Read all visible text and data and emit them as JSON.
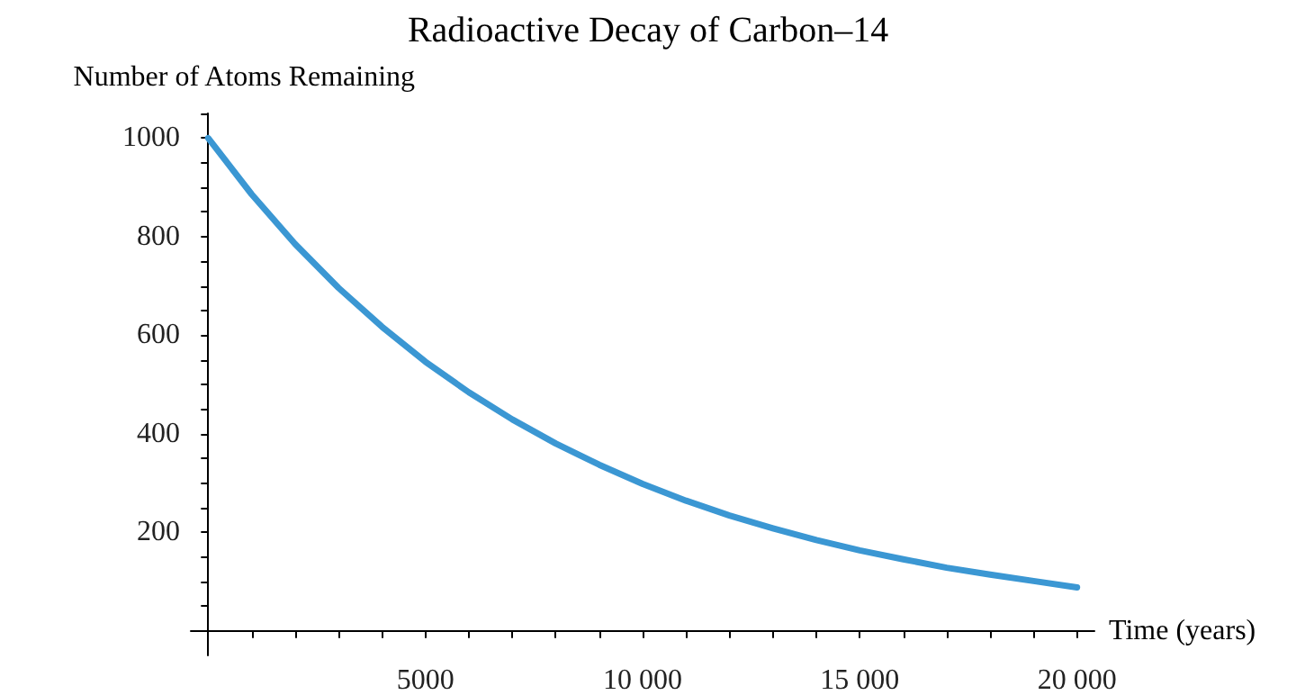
{
  "chart_data": {
    "type": "line",
    "title": "Radioactive Decay of Carbon–14",
    "xlabel": "Time (years)",
    "ylabel": "Number of Atoms Remaining",
    "x": [
      0,
      1000,
      2000,
      3000,
      4000,
      5000,
      6000,
      7000,
      8000,
      9000,
      10000,
      11000,
      12000,
      13000,
      14000,
      15000,
      16000,
      17000,
      18000,
      19000,
      20000
    ],
    "series": [
      {
        "color": "#3b97d3",
        "values": [
          1000,
          886,
          785,
          696,
          617,
          546,
          484,
          429,
          380,
          337,
          298,
          264,
          234,
          208,
          184,
          163,
          145,
          128,
          114,
          101,
          88
        ]
      }
    ],
    "xlim": [
      -400,
      20400
    ],
    "ylim": [
      -50,
      1050
    ],
    "xticks": [
      {
        "value": 0,
        "label": null
      },
      {
        "value": 1000,
        "label": null
      },
      {
        "value": 2000,
        "label": null
      },
      {
        "value": 3000,
        "label": null
      },
      {
        "value": 4000,
        "label": null
      },
      {
        "value": 5000,
        "label": "5000"
      },
      {
        "value": 6000,
        "label": null
      },
      {
        "value": 7000,
        "label": null
      },
      {
        "value": 8000,
        "label": null
      },
      {
        "value": 9000,
        "label": null
      },
      {
        "value": 10000,
        "label": "10 000"
      },
      {
        "value": 11000,
        "label": null
      },
      {
        "value": 12000,
        "label": null
      },
      {
        "value": 13000,
        "label": null
      },
      {
        "value": 14000,
        "label": null
      },
      {
        "value": 15000,
        "label": "15 000"
      },
      {
        "value": 16000,
        "label": null
      },
      {
        "value": 17000,
        "label": null
      },
      {
        "value": 18000,
        "label": null
      },
      {
        "value": 19000,
        "label": null
      },
      {
        "value": 20000,
        "label": "20 000"
      }
    ],
    "yticks": [
      {
        "value": 50,
        "label": null
      },
      {
        "value": 100,
        "label": null
      },
      {
        "value": 150,
        "label": null
      },
      200,
      {
        "value": 250,
        "label": null
      },
      {
        "value": 300,
        "label": null
      },
      {
        "value": 350,
        "label": null
      },
      400,
      {
        "value": 450,
        "label": null
      },
      {
        "value": 500,
        "label": null
      },
      {
        "value": 550,
        "label": null
      },
      600,
      {
        "value": 650,
        "label": null
      },
      {
        "value": 700,
        "label": null
      },
      {
        "value": 750,
        "label": null
      },
      800,
      {
        "value": 850,
        "label": null
      },
      {
        "value": 900,
        "label": null
      },
      {
        "value": 950,
        "label": null
      },
      1000,
      {
        "value": 1050,
        "label": null
      }
    ],
    "grid": false,
    "marker": "none",
    "line_style": "solid"
  }
}
